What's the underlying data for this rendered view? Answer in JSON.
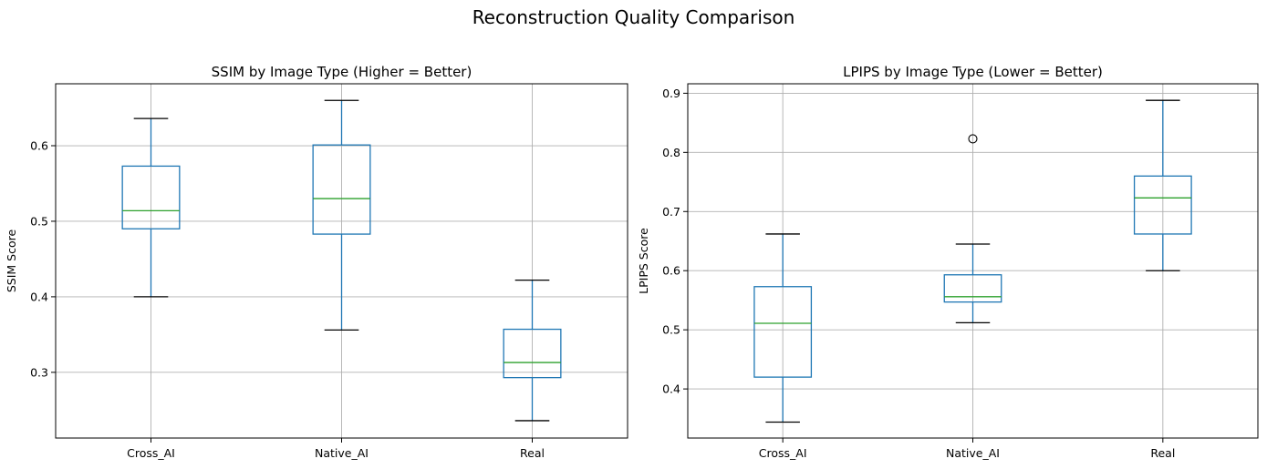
{
  "figure": {
    "suptitle": "Reconstruction Quality Comparison"
  },
  "colors": {
    "box": "#1f77b4",
    "median": "#2ca02c",
    "whisker_cap": "#000000",
    "grid": "#b0b0b0",
    "axes": "#000000"
  },
  "chart_data": [
    {
      "type": "box",
      "title": "SSIM by Image Type (Higher = Better)",
      "xlabel": "",
      "ylabel": "SSIM Score",
      "categories": [
        "Cross_AI",
        "Native_AI",
        "Real"
      ],
      "ylim": [
        0.213,
        0.682
      ],
      "yticks": [
        0.3,
        0.4,
        0.5,
        0.6
      ],
      "ytick_labels": [
        "0.3",
        "0.4",
        "0.5",
        "0.6"
      ],
      "grid": true,
      "boxes": [
        {
          "category": "Cross_AI",
          "whisker_low": 0.4,
          "q1": 0.49,
          "median": 0.514,
          "q3": 0.573,
          "whisker_high": 0.636,
          "outliers": []
        },
        {
          "category": "Native_AI",
          "whisker_low": 0.356,
          "q1": 0.483,
          "median": 0.53,
          "q3": 0.601,
          "whisker_high": 0.66,
          "outliers": []
        },
        {
          "category": "Real",
          "whisker_low": 0.236,
          "q1": 0.293,
          "median": 0.313,
          "q3": 0.357,
          "whisker_high": 0.422,
          "outliers": []
        }
      ]
    },
    {
      "type": "box",
      "title": "LPIPS by Image Type (Lower = Better)",
      "xlabel": "",
      "ylabel": "LPIPS Score",
      "categories": [
        "Cross_AI",
        "Native_AI",
        "Real"
      ],
      "ylim": [
        0.317,
        0.916
      ],
      "yticks": [
        0.4,
        0.5,
        0.6,
        0.7,
        0.8,
        0.9
      ],
      "ytick_labels": [
        "0.4",
        "0.5",
        "0.6",
        "0.7",
        "0.8",
        "0.9"
      ],
      "grid": true,
      "boxes": [
        {
          "category": "Cross_AI",
          "whisker_low": 0.344,
          "q1": 0.42,
          "median": 0.511,
          "q3": 0.573,
          "whisker_high": 0.662,
          "outliers": []
        },
        {
          "category": "Native_AI",
          "whisker_low": 0.512,
          "q1": 0.547,
          "median": 0.556,
          "q3": 0.593,
          "whisker_high": 0.645,
          "outliers": [
            0.823
          ]
        },
        {
          "category": "Real",
          "whisker_low": 0.6,
          "q1": 0.662,
          "median": 0.723,
          "q3": 0.76,
          "whisker_high": 0.888,
          "outliers": []
        }
      ]
    }
  ]
}
